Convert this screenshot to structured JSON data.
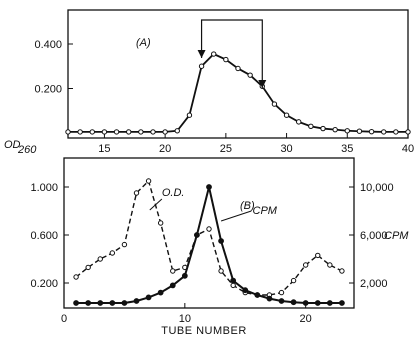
{
  "chart_data": [
    {
      "type": "line",
      "panel_label": "(A)",
      "xlim": [
        12,
        40
      ],
      "ylim": [
        0,
        0.5
      ],
      "xticks": [
        15,
        20,
        25,
        30,
        35,
        40
      ],
      "yticks": [
        0.2,
        0.4
      ],
      "ytick_labels": [
        "0.200",
        "0.400"
      ],
      "ylabel": "OD",
      "ylabel_sub": "260",
      "annotation": "bracket with arrows marking tubes 23 to 28",
      "bracket_from": 23,
      "bracket_to": 28,
      "series": [
        {
          "marker": "open-circle",
          "line_style": "solid",
          "x": [
            12,
            13,
            14,
            15,
            16,
            17,
            18,
            19,
            20,
            21,
            22,
            23,
            24,
            25,
            26,
            27,
            28,
            29,
            30,
            31,
            32,
            33,
            34,
            35,
            36,
            37,
            38,
            39,
            40
          ],
          "y": [
            0.005,
            0.005,
            0.005,
            0.005,
            0.005,
            0.005,
            0.005,
            0.005,
            0.005,
            0.01,
            0.08,
            0.3,
            0.355,
            0.33,
            0.29,
            0.26,
            0.21,
            0.13,
            0.08,
            0.05,
            0.03,
            0.02,
            0.015,
            0.01,
            0.008,
            0.006,
            0.005,
            0.005,
            0.005
          ]
        }
      ]
    },
    {
      "type": "line",
      "panel_label": "(B)",
      "xlabel": "TUBE NUMBER",
      "xlim": [
        0,
        24
      ],
      "ylim_left": [
        0,
        1.15
      ],
      "ylim_right": [
        0,
        11500
      ],
      "xticks": [
        0,
        10,
        20
      ],
      "yticks_left": [
        0.2,
        0.6,
        1.0
      ],
      "ytick_labels_left": [
        "0.200",
        "0.600",
        "1.000"
      ],
      "yticks_right": [
        2000,
        6000,
        10000
      ],
      "ytick_labels_right": [
        "2,000",
        "6,000",
        "10,000"
      ],
      "ylabel_right": "CPM",
      "series": [
        {
          "name": "O.D.",
          "axis": "left",
          "marker": "open-circle",
          "line_style": "dashed",
          "x": [
            1,
            2,
            3,
            4,
            5,
            6,
            7,
            8,
            9,
            10,
            11,
            12,
            13,
            14,
            15,
            16,
            17,
            18,
            19,
            20,
            21,
            22,
            23
          ],
          "y": [
            0.25,
            0.33,
            0.4,
            0.45,
            0.52,
            0.95,
            1.05,
            0.7,
            0.3,
            0.33,
            0.6,
            0.65,
            0.3,
            0.18,
            0.12,
            0.1,
            0.1,
            0.12,
            0.22,
            0.35,
            0.43,
            0.35,
            0.3
          ]
        },
        {
          "name": "CPM",
          "axis": "right",
          "marker": "filled-circle",
          "line_style": "solid",
          "x": [
            1,
            2,
            3,
            4,
            5,
            6,
            7,
            8,
            9,
            10,
            11,
            12,
            13,
            14,
            15,
            16,
            17,
            18,
            19,
            20,
            21,
            22,
            23
          ],
          "y": [
            50,
            80,
            100,
            200,
            300,
            500,
            800,
            1200,
            1800,
            2600,
            6000,
            10000,
            5500,
            2200,
            1400,
            1000,
            700,
            500,
            400,
            300,
            200,
            150,
            100
          ]
        }
      ]
    }
  ]
}
